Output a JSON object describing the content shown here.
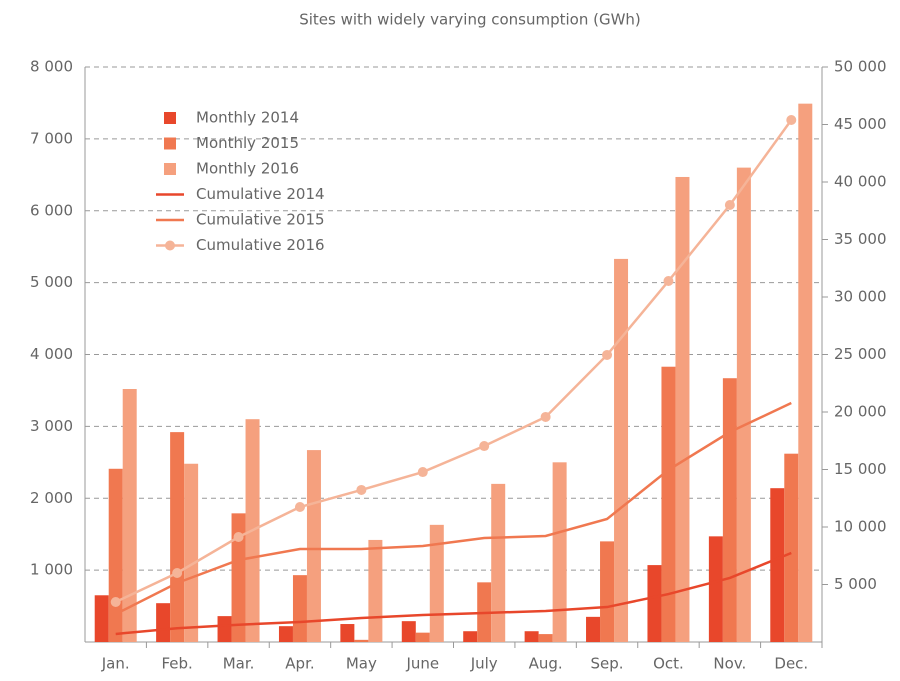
{
  "chart_data": {
    "type": "bar",
    "title": "Sites with widely varying consumption (GWh)",
    "categories": [
      "Jan.",
      "Feb.",
      "Mar.",
      "Apr.",
      "May",
      "June",
      "July",
      "Aug.",
      "Sep.",
      "Oct.",
      "Nov.",
      "Dec."
    ],
    "series": [
      {
        "name": "Monthly 2014",
        "type": "bar",
        "color": "#e8472b",
        "values": [
          650,
          540,
          360,
          220,
          250,
          290,
          150,
          150,
          350,
          1070,
          1470,
          2140
        ]
      },
      {
        "name": "Monthly 2015",
        "type": "bar",
        "color": "#f07850",
        "values": [
          2410,
          2920,
          1790,
          930,
          30,
          130,
          830,
          110,
          1400,
          3830,
          3670,
          2620
        ]
      },
      {
        "name": "Monthly 2016",
        "type": "bar",
        "color": "#f5a07e",
        "values": [
          3520,
          2480,
          3100,
          2670,
          1420,
          1630,
          2200,
          2500,
          5330,
          6470,
          6600,
          7490
        ]
      },
      {
        "name": "Cumulative 2014",
        "type": "line",
        "axis": "y2",
        "color": "#e8472b",
        "values": [
          700,
          1200,
          1500,
          1740,
          2090,
          2350,
          2520,
          2700,
          3040,
          4170,
          5570,
          7740
        ]
      },
      {
        "name": "Cumulative 2015",
        "type": "line",
        "axis": "y2",
        "color": "#f07850",
        "values": [
          2430,
          5130,
          7130,
          8090,
          8090,
          8350,
          9040,
          9220,
          10700,
          14960,
          18260,
          20780
        ]
      },
      {
        "name": "Cumulative 2016",
        "type": "line",
        "axis": "y2",
        "color": "#f5b498",
        "marker": true,
        "values": [
          3480,
          6000,
          9130,
          11740,
          13220,
          14780,
          17040,
          19570,
          24960,
          31390,
          38000,
          45390
        ]
      }
    ],
    "ylim": [
      0,
      8000
    ],
    "yticks": [
      {
        "value": 1000,
        "label": "1 000"
      },
      {
        "value": 2000,
        "label": "2 000"
      },
      {
        "value": 3000,
        "label": "3 000"
      },
      {
        "value": 4000,
        "label": "4 000"
      },
      {
        "value": 5000,
        "label": "5 000"
      },
      {
        "value": 6000,
        "label": "6 000"
      },
      {
        "value": 7000,
        "label": "7 000"
      },
      {
        "value": 8000,
        "label": "8 000"
      }
    ],
    "y2lim": [
      0,
      50000
    ],
    "y2ticks": [
      {
        "value": 5000,
        "label": "5 000"
      },
      {
        "value": 10000,
        "label": "10 000"
      },
      {
        "value": 15000,
        "label": "15 000"
      },
      {
        "value": 20000,
        "label": "20 000"
      },
      {
        "value": 25000,
        "label": "25 000"
      },
      {
        "value": 30000,
        "label": "30 000"
      },
      {
        "value": 35000,
        "label": "35 000"
      },
      {
        "value": 40000,
        "label": "40 000"
      },
      {
        "value": 45000,
        "label": "45 000"
      },
      {
        "value": 50000,
        "label": "50 000"
      }
    ],
    "grid": true,
    "legend": "top-left"
  }
}
